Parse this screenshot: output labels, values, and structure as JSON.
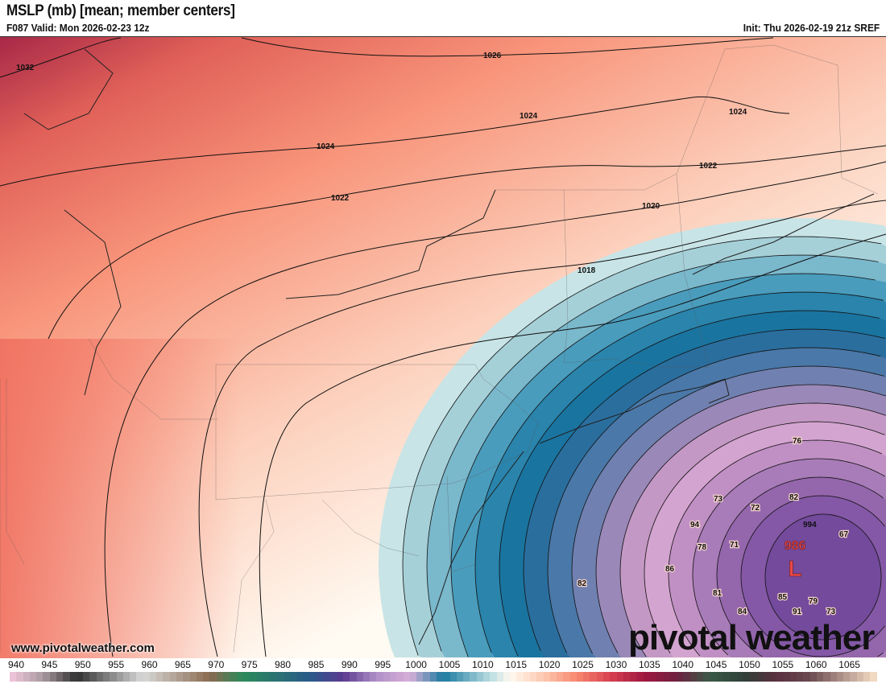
{
  "header": {
    "title": "MSLP (mb) [mean; member centers]",
    "valid": "F087 Valid: Mon 2026-02-23 12z",
    "init": "Init: Thu 2026-02-19 21z SREF"
  },
  "watermark": {
    "site": "www.pivotalweather.com",
    "logo": "pivotalweather"
  },
  "isobars": [
    {
      "value": "1032",
      "id": "1032"
    },
    {
      "value": "1026",
      "id": "1026"
    },
    {
      "value": "1024",
      "id": "1024a"
    },
    {
      "value": "1024",
      "id": "1024b"
    },
    {
      "value": "1024",
      "id": "1024c"
    },
    {
      "value": "1022",
      "id": "1022a"
    },
    {
      "value": "1022",
      "id": "1022b"
    },
    {
      "value": "1020",
      "id": "1020"
    },
    {
      "value": "1018",
      "id": "1018"
    },
    {
      "value": "994",
      "id": "994"
    }
  ],
  "low": {
    "pressure": "986",
    "symbol": "L",
    "color": "#e84848"
  },
  "member_centers": [
    "76",
    "73",
    "82",
    "72",
    "67",
    "94",
    "78",
    "71",
    "86",
    "81",
    "85",
    "79",
    "91",
    "73",
    "84",
    "82"
  ],
  "colorbar": {
    "labels": [
      "940",
      "945",
      "950",
      "955",
      "960",
      "965",
      "970",
      "975",
      "980",
      "985",
      "990",
      "995",
      "1000",
      "1005",
      "1010",
      "1015",
      "1020",
      "1025",
      "1030",
      "1035",
      "1040",
      "1045",
      "1050",
      "1055",
      "1060",
      "1065"
    ],
    "range": [
      940,
      1070
    ],
    "stops": [
      [
        940,
        "#f4c8dc"
      ],
      [
        945,
        "#a89aa0"
      ],
      [
        950,
        "#303030"
      ],
      [
        960,
        "#d8d8d8"
      ],
      [
        970,
        "#8a6a50"
      ],
      [
        975,
        "#2a8a5a"
      ],
      [
        985,
        "#2a5a8a"
      ],
      [
        990,
        "#5a3a90"
      ],
      [
        995,
        "#b090c8"
      ],
      [
        1000,
        "#d8b0d8"
      ],
      [
        1005,
        "#1a7aa0"
      ],
      [
        1012,
        "#b8dce0"
      ],
      [
        1015,
        "#fffaf0"
      ],
      [
        1020,
        "#fcc8b0"
      ],
      [
        1025,
        "#f88870"
      ],
      [
        1030,
        "#d84050"
      ],
      [
        1035,
        "#a01840"
      ],
      [
        1040,
        "#702040"
      ],
      [
        1045,
        "#3a5a48"
      ],
      [
        1050,
        "#304038"
      ],
      [
        1055,
        "#5a3040"
      ],
      [
        1060,
        "#6a4a50"
      ],
      [
        1070,
        "#f8e0c8"
      ]
    ]
  }
}
